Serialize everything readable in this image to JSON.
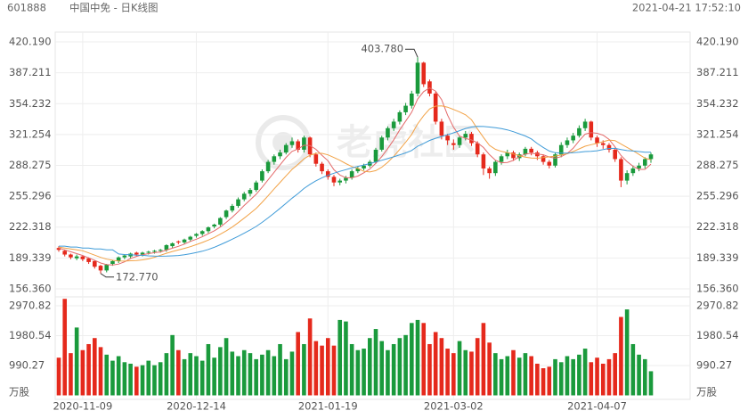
{
  "chart_data": {
    "type": "candlestick",
    "code": "601888",
    "title": "中国中免 - 日K线图",
    "timestamp": "2021-04-21 17:52:10",
    "watermark": "老虎社区",
    "volume_unit": "万股",
    "categories": [
      null,
      null,
      null,
      null,
      "2020-11-09",
      null,
      null,
      null,
      null,
      null,
      null,
      null,
      null,
      null,
      null,
      null,
      null,
      null,
      null,
      null,
      null,
      null,
      null,
      "2020-12-14",
      null,
      null,
      null,
      null,
      null,
      null,
      null,
      null,
      null,
      null,
      null,
      null,
      null,
      null,
      null,
      null,
      null,
      null,
      null,
      null,
      null,
      "2021-01-19",
      null,
      null,
      null,
      null,
      null,
      null,
      null,
      null,
      null,
      null,
      null,
      null,
      null,
      null,
      null,
      null,
      null,
      null,
      null,
      null,
      "2021-03-02",
      null,
      null,
      null,
      null,
      null,
      null,
      null,
      null,
      null,
      null,
      null,
      null,
      null,
      null,
      null,
      null,
      null,
      null,
      null,
      null,
      null,
      null,
      null,
      "2021-04-07",
      null,
      null,
      null,
      null,
      null,
      null,
      null,
      null,
      null
    ],
    "open": [
      200,
      197,
      193,
      189,
      191,
      189,
      186,
      181,
      176,
      183,
      186,
      190,
      191,
      195,
      193,
      195,
      196,
      197,
      198,
      202,
      207,
      206,
      209,
      213,
      215,
      218,
      223,
      225,
      233,
      240,
      245,
      252,
      258,
      262,
      272,
      282,
      292,
      298,
      302,
      310,
      314,
      305,
      318,
      300,
      290,
      282,
      276,
      270,
      272,
      275,
      282,
      285,
      288,
      292,
      305,
      318,
      328,
      335,
      345,
      352,
      365,
      398,
      378,
      365,
      335,
      320,
      312,
      310,
      318,
      322,
      312,
      300,
      285,
      280,
      292,
      298,
      302,
      296,
      300,
      306,
      302,
      298,
      292,
      288,
      300,
      310,
      315,
      320,
      328,
      335,
      318,
      312,
      310,
      305,
      295,
      272,
      280,
      285,
      288,
      295
    ],
    "high": [
      202,
      198,
      194,
      193,
      192,
      190,
      187,
      182,
      183,
      187,
      191,
      193,
      195,
      196,
      196,
      197,
      198,
      199,
      204,
      206,
      208,
      210,
      213,
      216,
      219,
      223,
      226,
      233,
      241,
      247,
      254,
      260,
      264,
      272,
      284,
      294,
      300,
      305,
      312,
      318,
      316,
      320,
      319,
      302,
      292,
      284,
      278,
      274,
      277,
      284,
      287,
      290,
      294,
      307,
      320,
      330,
      338,
      347,
      355,
      368,
      403.78,
      399,
      380,
      367,
      338,
      322,
      316,
      320,
      325,
      324,
      314,
      302,
      287,
      294,
      300,
      305,
      304,
      302,
      308,
      308,
      304,
      300,
      294,
      302,
      313,
      318,
      323,
      331,
      338,
      336,
      320,
      315,
      312,
      307,
      297,
      283,
      288,
      291,
      297,
      302
    ],
    "low": [
      196,
      191,
      188,
      187,
      186,
      183,
      178,
      172.77,
      174,
      181,
      184,
      188,
      189,
      191,
      191,
      193,
      194,
      195,
      196,
      200,
      204,
      204,
      207,
      211,
      213,
      216,
      221,
      223,
      231,
      238,
      243,
      250,
      255,
      260,
      270,
      280,
      289,
      295,
      300,
      307,
      302,
      302,
      297,
      287,
      279,
      273,
      266,
      267,
      269,
      273,
      280,
      283,
      286,
      290,
      303,
      315,
      325,
      332,
      342,
      349,
      362,
      372,
      362,
      332,
      316,
      310,
      305,
      307,
      315,
      309,
      297,
      278,
      274,
      277,
      289,
      295,
      293,
      293,
      298,
      299,
      294,
      289,
      285,
      286,
      297,
      307,
      312,
      318,
      325,
      315,
      308,
      306,
      302,
      292,
      265,
      268,
      277,
      282,
      285,
      291
    ],
    "close": [
      198,
      193,
      190,
      191,
      188,
      185,
      180,
      176,
      182,
      186,
      190,
      192,
      194,
      193,
      195,
      196,
      197,
      198,
      203,
      205,
      206,
      209,
      212,
      215,
      218,
      222,
      225,
      232,
      240,
      245,
      252,
      258,
      262,
      270,
      282,
      292,
      298,
      302,
      310,
      314,
      305,
      318,
      300,
      290,
      282,
      276,
      270,
      272,
      275,
      282,
      285,
      288,
      292,
      305,
      318,
      328,
      335,
      345,
      352,
      365,
      398,
      375,
      365,
      335,
      320,
      315,
      310,
      318,
      322,
      312,
      300,
      285,
      280,
      292,
      298,
      302,
      296,
      300,
      306,
      302,
      298,
      292,
      288,
      300,
      310,
      315,
      320,
      328,
      335,
      318,
      312,
      310,
      305,
      295,
      272,
      280,
      285,
      288,
      295,
      300
    ],
    "volume": [
      1250,
      3200,
      1400,
      2250,
      1500,
      1700,
      1900,
      1600,
      1350,
      1150,
      1300,
      1100,
      1050,
      950,
      1000,
      1150,
      1000,
      1100,
      1400,
      2000,
      1500,
      1200,
      1400,
      1300,
      1150,
      1700,
      1250,
      1600,
      1900,
      1450,
      1300,
      1500,
      1400,
      1200,
      1350,
      1500,
      1300,
      1700,
      1200,
      1450,
      2100,
      1700,
      2550,
      1800,
      1650,
      1900,
      1650,
      2500,
      2450,
      1700,
      1500,
      1550,
      1900,
      2200,
      1800,
      1500,
      1700,
      1900,
      2000,
      2400,
      2500,
      2400,
      1700,
      2100,
      1900,
      1550,
      1400,
      1800,
      1500,
      1450,
      1900,
      2400,
      1750,
      1400,
      1200,
      1300,
      1500,
      1250,
      1400,
      1300,
      1050,
      900,
      950,
      1200,
      1100,
      1300,
      1200,
      1350,
      1550,
      1100,
      1250,
      1050,
      1200,
      1400,
      2600,
      2850,
      1700,
      1350,
      1200,
      800
    ],
    "up_color": "#1a9a3c",
    "down_color": "#e5291c",
    "series": [
      {
        "color": "#e36a6a",
        "values": [
          200,
          198,
          196,
          194,
          192,
          189.4,
          186.8,
          184,
          182.2,
          181.8,
          182.8,
          185.2,
          188.8,
          191,
          192.8,
          194,
          195,
          195.8,
          197.8,
          199.8,
          201.8,
          204.2,
          207,
          209.4,
          212,
          215.2,
          218.4,
          222.4,
          227.4,
          232.8,
          238.8,
          245.4,
          251.4,
          257.4,
          264.8,
          272.8,
          280.8,
          288.8,
          296.8,
          303.2,
          305.8,
          309.8,
          309.4,
          305.4,
          299,
          293.2,
          283.6,
          278,
          275,
          275,
          276.8,
          280.4,
          284.4,
          290.4,
          297.6,
          306.2,
          315.6,
          326.2,
          335.6,
          345,
          359,
          367,
          371,
          367.6,
          358.6,
          342,
          329,
          319.6,
          317,
          315.4,
          312.4,
          307.4,
          299.8,
          293.8,
          291,
          291.4,
          293.6,
          297.6,
          300.4,
          301.2,
          300.4,
          299.6,
          297.2,
          296,
          297.6,
          301,
          306.6,
          314.6,
          321.6,
          323.2,
          322.6,
          320.6,
          316,
          308,
          298.8,
          292.4,
          287.4,
          284,
          284,
          289.6
        ]
      },
      {
        "color": "#f2a246",
        "values": [
          201,
          200,
          199,
          198,
          197,
          194.7,
          192.4,
          190,
          188.1,
          186.9,
          186.1,
          186,
          186.4,
          186.6,
          187.3,
          188.4,
          190.1,
          192.3,
          194.4,
          196.3,
          197.9,
          199.6,
          201.4,
          203.6,
          205.9,
          208.5,
          211.3,
          214.7,
          218.4,
          222.4,
          227,
          231.9,
          236.9,
          242.4,
          248.8,
          255.8,
          263.1,
          270.1,
          277.1,
          284,
          289.3,
          295.3,
          299.1,
          301.1,
          301.1,
          299.5,
          296.7,
          293.7,
          290.2,
          287,
          285,
          282,
          281.2,
          282.7,
          286.3,
          291.5,
          298,
          305.3,
          313,
          321.3,
          332.6,
          341.3,
          348.6,
          351.6,
          351.8,
          350.5,
          348,
          345.3,
          342.3,
          337,
          327.2,
          318.2,
          309.7,
          305.4,
          303.2,
          301.9,
          300.5,
          298.7,
          297.1,
          296.1,
          295.9,
          296.6,
          297.4,
          298.2,
          299.4,
          300.7,
          303.1,
          305.9,
          308.8,
          310.4,
          311.8,
          313.6,
          315.3,
          314.8,
          311,
          307.5,
          304,
          300,
          296,
          294.2
        ]
      },
      {
        "color": "#3f9bd8",
        "values": [
          202,
          202,
          201,
          201,
          200,
          200,
          199,
          199,
          198,
          198,
          193.6,
          193,
          192.7,
          192.3,
          192.2,
          191.6,
          191.3,
          191.2,
          191.3,
          191.6,
          192,
          192.8,
          193.9,
          195.1,
          196.6,
          198.5,
          200.7,
          203.5,
          206.4,
          209.4,
          212.5,
          215.8,
          219.2,
          223,
          227.4,
          232.2,
          237.2,
          242.4,
          247.8,
          253.2,
          258.2,
          263.6,
          268,
          271.8,
          275,
          277.7,
          279.9,
          281.9,
          283.7,
          285.5,
          287.2,
          288.7,
          290.2,
          291.9,
          293.7,
          295.5,
          297.4,
          299.5,
          301.6,
          304.2,
          308.8,
          311.7,
          314.9,
          317.2,
          319.1,
          321,
          323,
          325.3,
          327.7,
          329.2,
          329.9,
          329.8,
          329.2,
          328.5,
          327.5,
          326.2,
          324.3,
          322,
          319.7,
          316.6,
          311.6,
          307.4,
          303.6,
          301.8,
          301.3,
          301.3,
          301.8,
          302.3,
          303,
          303.3,
          303.9,
          305.1,
          306.4,
          306.5,
          305.2,
          304.1,
          303.6,
          303,
          302.4,
          302.3
        ]
      }
    ],
    "high_label": "403.780",
    "low_label": "172.770",
    "ylim": [
      156.36,
      420.19
    ],
    "yticks": [
      {
        "value": 420.19,
        "label": "420.190"
      },
      387.211,
      354.232,
      321.254,
      288.275,
      255.296,
      222.318,
      {
        "value": 189.339,
        "label": "189.339"
      },
      {
        "value": 156.36,
        "label": "156.360"
      }
    ],
    "volume_lim": [
      0,
      3266
    ],
    "volume_ticks": [
      2970.82,
      1980.54,
      990.27
    ],
    "grid": true
  }
}
